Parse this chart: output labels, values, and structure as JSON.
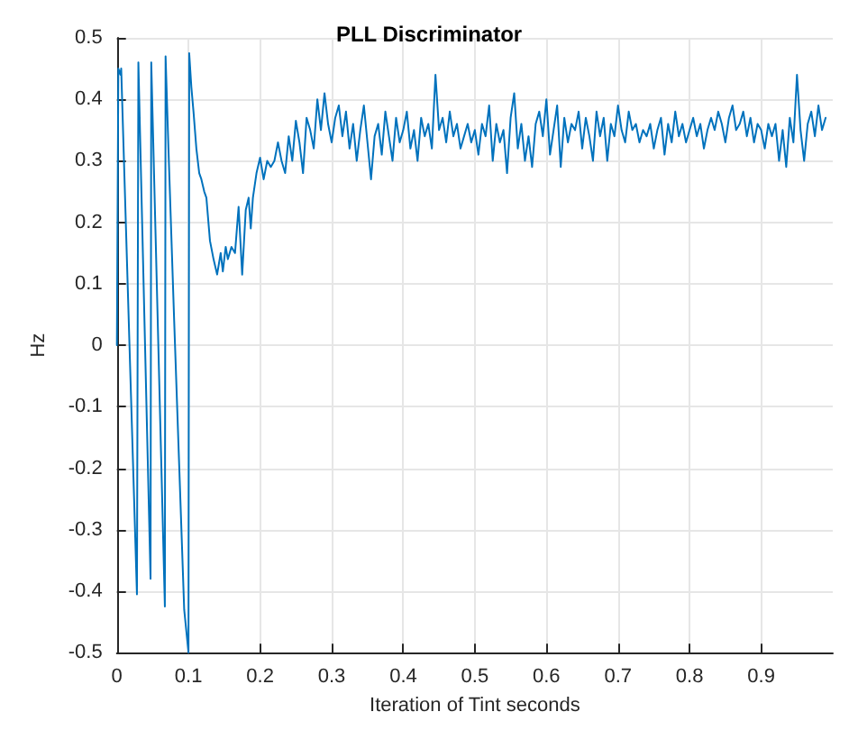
{
  "chart_data": {
    "type": "line",
    "title": "PLL Discriminator",
    "xlabel": "Iteration of Tint seconds",
    "ylabel": "Hz",
    "xlim": [
      0,
      1
    ],
    "xticks": [
      0,
      0.1,
      0.2,
      0.3,
      0.4,
      0.5,
      0.6,
      0.7,
      0.8,
      0.9
    ],
    "ylim": [
      -0.5,
      0.5
    ],
    "yticks": [
      -0.5,
      -0.4,
      -0.3,
      -0.2,
      -0.1,
      0,
      0.1,
      0.2,
      0.3,
      0.4,
      0.5
    ],
    "grid": true,
    "marker": "none",
    "line_style": "solid",
    "x": [
      0,
      0.002,
      0.005,
      0.006,
      0.028,
      0.03,
      0.047,
      0.048,
      0.067,
      0.068,
      0.072,
      0.08,
      0.094,
      0.1,
      0.101,
      0.104,
      0.107,
      0.111,
      0.115,
      0.118,
      0.122,
      0.125,
      0.13,
      0.135,
      0.14,
      0.145,
      0.148,
      0.152,
      0.155,
      0.16,
      0.165,
      0.17,
      0.175,
      0.18,
      0.184,
      0.187,
      0.19,
      0.195,
      0.2,
      0.205,
      0.21,
      0.215,
      0.22,
      0.225,
      0.23,
      0.235,
      0.24,
      0.245,
      0.25,
      0.255,
      0.26,
      0.265,
      0.27,
      0.275,
      0.28,
      0.285,
      0.29,
      0.295,
      0.3,
      0.305,
      0.31,
      0.315,
      0.32,
      0.325,
      0.33,
      0.335,
      0.34,
      0.345,
      0.35,
      0.355,
      0.36,
      0.365,
      0.37,
      0.375,
      0.38,
      0.385,
      0.39,
      0.395,
      0.4,
      0.405,
      0.41,
      0.415,
      0.42,
      0.425,
      0.43,
      0.435,
      0.44,
      0.445,
      0.45,
      0.455,
      0.46,
      0.465,
      0.47,
      0.475,
      0.48,
      0.485,
      0.49,
      0.495,
      0.5,
      0.505,
      0.51,
      0.515,
      0.52,
      0.525,
      0.53,
      0.535,
      0.54,
      0.545,
      0.55,
      0.555,
      0.56,
      0.565,
      0.57,
      0.575,
      0.58,
      0.585,
      0.59,
      0.595,
      0.6,
      0.605,
      0.61,
      0.615,
      0.62,
      0.625,
      0.63,
      0.635,
      0.64,
      0.645,
      0.65,
      0.655,
      0.66,
      0.665,
      0.67,
      0.675,
      0.68,
      0.685,
      0.69,
      0.695,
      0.7,
      0.705,
      0.71,
      0.715,
      0.72,
      0.725,
      0.73,
      0.735,
      0.74,
      0.745,
      0.75,
      0.755,
      0.76,
      0.765,
      0.77,
      0.775,
      0.78,
      0.785,
      0.79,
      0.795,
      0.8,
      0.805,
      0.81,
      0.815,
      0.82,
      0.825,
      0.83,
      0.835,
      0.84,
      0.845,
      0.85,
      0.855,
      0.86,
      0.865,
      0.87,
      0.875,
      0.88,
      0.885,
      0.89,
      0.895,
      0.9,
      0.905,
      0.91,
      0.915,
      0.92,
      0.925,
      0.93,
      0.935,
      0.94,
      0.945,
      0.95,
      0.955,
      0.96,
      0.965,
      0.97,
      0.975,
      0.98,
      0.985,
      0.99
    ],
    "series": [
      {
        "color": "#0072bd",
        "values": [
          0,
          0.45,
          0.44,
          0.45,
          -0.405,
          0.46,
          -0.38,
          0.46,
          -0.425,
          0.47,
          0.32,
          0.04,
          -0.43,
          -0.5,
          0.475,
          0.42,
          0.38,
          0.32,
          0.28,
          0.27,
          0.25,
          0.24,
          0.17,
          0.14,
          0.115,
          0.15,
          0.12,
          0.16,
          0.14,
          0.16,
          0.15,
          0.225,
          0.115,
          0.22,
          0.24,
          0.19,
          0.24,
          0.28,
          0.305,
          0.27,
          0.3,
          0.29,
          0.3,
          0.33,
          0.3,
          0.28,
          0.34,
          0.3,
          0.365,
          0.33,
          0.28,
          0.37,
          0.35,
          0.32,
          0.4,
          0.35,
          0.41,
          0.36,
          0.33,
          0.37,
          0.39,
          0.34,
          0.38,
          0.32,
          0.36,
          0.3,
          0.35,
          0.39,
          0.33,
          0.27,
          0.34,
          0.36,
          0.31,
          0.38,
          0.34,
          0.3,
          0.37,
          0.33,
          0.35,
          0.38,
          0.32,
          0.35,
          0.3,
          0.37,
          0.34,
          0.36,
          0.32,
          0.44,
          0.35,
          0.37,
          0.33,
          0.38,
          0.34,
          0.36,
          0.32,
          0.34,
          0.36,
          0.33,
          0.35,
          0.31,
          0.36,
          0.34,
          0.39,
          0.3,
          0.36,
          0.33,
          0.35,
          0.28,
          0.37,
          0.41,
          0.32,
          0.36,
          0.3,
          0.34,
          0.29,
          0.36,
          0.38,
          0.34,
          0.4,
          0.31,
          0.35,
          0.39,
          0.29,
          0.37,
          0.33,
          0.36,
          0.35,
          0.38,
          0.32,
          0.37,
          0.34,
          0.3,
          0.38,
          0.34,
          0.37,
          0.3,
          0.36,
          0.34,
          0.39,
          0.35,
          0.33,
          0.38,
          0.35,
          0.36,
          0.33,
          0.35,
          0.34,
          0.36,
          0.32,
          0.35,
          0.37,
          0.31,
          0.36,
          0.33,
          0.38,
          0.34,
          0.36,
          0.33,
          0.35,
          0.37,
          0.34,
          0.36,
          0.32,
          0.35,
          0.37,
          0.35,
          0.38,
          0.36,
          0.33,
          0.37,
          0.39,
          0.35,
          0.36,
          0.38,
          0.34,
          0.37,
          0.33,
          0.36,
          0.35,
          0.32,
          0.36,
          0.34,
          0.36,
          0.3,
          0.35,
          0.29,
          0.37,
          0.33,
          0.44,
          0.35,
          0.3,
          0.36,
          0.38,
          0.34,
          0.39,
          0.35,
          0.37
        ]
      }
    ]
  }
}
